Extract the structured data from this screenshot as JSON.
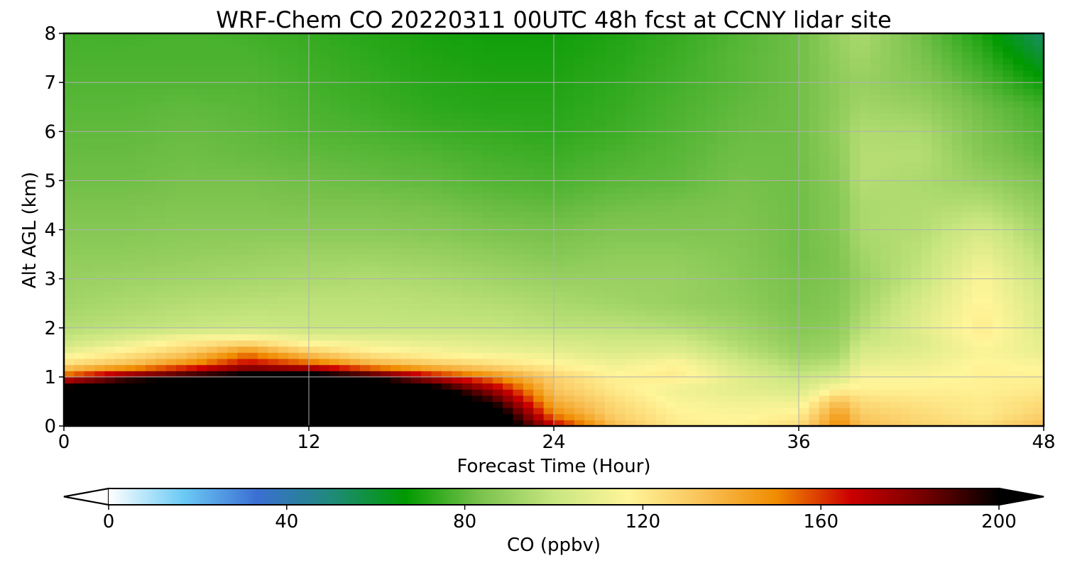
{
  "chart_data": {
    "type": "heatmap",
    "title": "WRF-Chem CO  20220311 00UTC 48h fcst at CCNY lidar site",
    "xlabel": "Forecast Time (Hour)",
    "ylabel": "Alt AGL (km)",
    "xlim": [
      0,
      48
    ],
    "ylim": [
      0,
      8
    ],
    "xticks": [
      0,
      12,
      24,
      36,
      48
    ],
    "yticks": [
      0,
      1,
      2,
      3,
      4,
      5,
      6,
      7,
      8
    ],
    "grid": true,
    "x_hours": [
      0,
      3,
      6,
      9,
      12,
      15,
      18,
      21,
      24,
      27,
      30,
      33,
      36,
      38,
      39,
      42,
      45,
      48
    ],
    "z_levels_km": [
      0,
      0.25,
      0.5,
      0.75,
      1,
      1.25,
      1.5,
      1.75,
      2,
      2.5,
      3,
      3.5,
      4,
      4.5,
      5,
      5.5,
      6,
      6.5,
      7,
      7.5,
      8
    ],
    "co_ppbv": [
      [
        220,
        220,
        220,
        220,
        220,
        220,
        220,
        220,
        170,
        135,
        120,
        118,
        125,
        150,
        135,
        128,
        125,
        135
      ],
      [
        220,
        220,
        220,
        220,
        220,
        220,
        220,
        215,
        150,
        128,
        118,
        115,
        118,
        145,
        130,
        125,
        120,
        128
      ],
      [
        220,
        220,
        220,
        220,
        220,
        220,
        220,
        195,
        140,
        125,
        115,
        112,
        112,
        135,
        125,
        122,
        120,
        125
      ],
      [
        210,
        220,
        220,
        220,
        220,
        220,
        210,
        175,
        132,
        120,
        112,
        108,
        105,
        118,
        118,
        118,
        118,
        120
      ],
      [
        160,
        185,
        200,
        210,
        215,
        200,
        170,
        150,
        128,
        118,
        120,
        108,
        100,
        105,
        115,
        115,
        118,
        118
      ],
      [
        125,
        135,
        150,
        170,
        160,
        140,
        132,
        125,
        118,
        112,
        118,
        104,
        95,
        98,
        110,
        112,
        118,
        115
      ],
      [
        110,
        120,
        130,
        150,
        130,
        120,
        115,
        112,
        110,
        106,
        108,
        98,
        90,
        92,
        105,
        108,
        115,
        110
      ],
      [
        100,
        108,
        118,
        120,
        112,
        110,
        108,
        106,
        104,
        102,
        102,
        94,
        88,
        90,
        100,
        106,
        118,
        108
      ],
      [
        96,
        98,
        100,
        102,
        100,
        100,
        100,
        100,
        98,
        98,
        96,
        92,
        86,
        88,
        96,
        108,
        120,
        106
      ],
      [
        92,
        94,
        96,
        97,
        98,
        98,
        97,
        96,
        94,
        92,
        90,
        88,
        84,
        86,
        92,
        105,
        118,
        104
      ],
      [
        90,
        91,
        92,
        93,
        94,
        95,
        94,
        92,
        90,
        90,
        90,
        87,
        83,
        85,
        90,
        100,
        116,
        100
      ],
      [
        88,
        88,
        89,
        90,
        91,
        91,
        90,
        88,
        86,
        88,
        88,
        86,
        82,
        85,
        92,
        98,
        110,
        96
      ],
      [
        86,
        86,
        87,
        87,
        87,
        87,
        86,
        84,
        83,
        85,
        85,
        85,
        82,
        86,
        94,
        96,
        104,
        92
      ],
      [
        84,
        84,
        85,
        85,
        84,
        84,
        83,
        81,
        80,
        82,
        83,
        84,
        82,
        86,
        94,
        95,
        96,
        88
      ],
      [
        82,
        82,
        83,
        83,
        82,
        81,
        80,
        78,
        77,
        79,
        80,
        83,
        82,
        87,
        96,
        94,
        90,
        84
      ],
      [
        81,
        81,
        82,
        81,
        80,
        79,
        78,
        76,
        75,
        77,
        79,
        82,
        82,
        88,
        96,
        96,
        86,
        80
      ],
      [
        80,
        80,
        81,
        80,
        78,
        77,
        75,
        74,
        73,
        75,
        78,
        81,
        82,
        89,
        95,
        94,
        84,
        78
      ],
      [
        79,
        79,
        80,
        79,
        77,
        75,
        73,
        72,
        72,
        74,
        77,
        80,
        82,
        88,
        92,
        90,
        82,
        76
      ],
      [
        78,
        78,
        78,
        78,
        76,
        74,
        72,
        71,
        71,
        73,
        76,
        79,
        82,
        88,
        90,
        86,
        78,
        68
      ],
      [
        77,
        77,
        77,
        77,
        75,
        73,
        71,
        70,
        70,
        72,
        75,
        79,
        82,
        89,
        92,
        84,
        74,
        60
      ],
      [
        76,
        76,
        77,
        76,
        74,
        72,
        70,
        69,
        69,
        71,
        74,
        78,
        82,
        90,
        94,
        82,
        70,
        52
      ]
    ],
    "colorbar": {
      "label": "CO  (ppbv)",
      "min": 0,
      "max": 200,
      "ticks": [
        0,
        40,
        80,
        120,
        160,
        200
      ],
      "extend": "both",
      "colors": [
        "#ffffff",
        "#6ccaf5",
        "#3b6fd3",
        "#1f8a7a",
        "#009900",
        "#79c24c",
        "#c8e680",
        "#fff599",
        "#f9c258",
        "#f08c00",
        "#cc0000",
        "#730000",
        "#000000"
      ]
    }
  }
}
